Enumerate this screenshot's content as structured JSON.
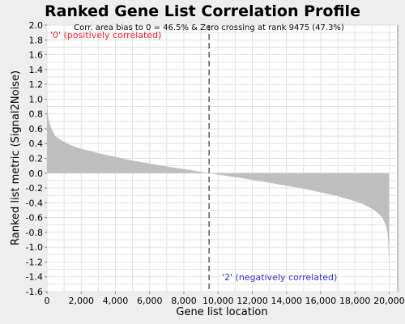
{
  "chart_data": {
    "type": "area",
    "title": "Ranked Gene List Correlation Profile",
    "xlabel": "Gene list location",
    "ylabel": "Ranked list metric (Signal2Noise)",
    "xlim": [
      0,
      20500
    ],
    "ylim": [
      -1.6,
      2.0
    ],
    "xticks": [
      0,
      2000,
      4000,
      6000,
      8000,
      10000,
      12000,
      14000,
      16000,
      18000,
      20000
    ],
    "xtick_labels": [
      "0",
      "2,000",
      "4,000",
      "6,000",
      "8,000",
      "10,000",
      "12,000",
      "14,000",
      "16,000",
      "18,000",
      "20,000"
    ],
    "yticks": [
      2.0,
      1.8,
      1.6,
      1.4,
      1.2,
      1.0,
      0.8,
      0.6,
      0.4,
      0.2,
      0.0,
      -0.2,
      -0.4,
      -0.6,
      -0.8,
      -1.0,
      -1.2,
      -1.4,
      -1.6
    ],
    "ytick_labels": [
      "2.0",
      "1.8",
      "1.6",
      "1.4",
      "1.2",
      "1.0",
      "0.8",
      "0.6",
      "0.4",
      "0.2",
      "0.0",
      "-0.2",
      "-0.4",
      "-0.6",
      "-0.8",
      "-1.0",
      "-1.2",
      "-1.4",
      "-1.6"
    ],
    "grid": true,
    "fill_color": "#bfbfbf",
    "zero_crossing_rank": 9475,
    "annotation": "Corr. area bias to 0 = 46.5% & Zero crossing at rank 9475 (47.3%)",
    "pos_label": "'0' (positively correlated)",
    "neg_label": "'2' (negatively correlated)",
    "pos_color": "#e8202a",
    "neg_color": "#3232c8",
    "x": [
      0,
      20,
      60,
      150,
      300,
      500,
      800,
      1200,
      1600,
      2000,
      2500,
      3000,
      4000,
      5000,
      6000,
      7000,
      8000,
      9000,
      9475,
      10000,
      11000,
      12000,
      13000,
      14000,
      15000,
      16000,
      17000,
      18000,
      18500,
      19000,
      19300,
      19600,
      19800,
      19900,
      19950,
      19980,
      20000
    ],
    "y": [
      1.02,
      0.9,
      0.78,
      0.67,
      0.58,
      0.5,
      0.45,
      0.4,
      0.36,
      0.33,
      0.3,
      0.27,
      0.22,
      0.17,
      0.13,
      0.09,
      0.055,
      0.02,
      0.0,
      -0.02,
      -0.055,
      -0.09,
      -0.13,
      -0.17,
      -0.21,
      -0.26,
      -0.31,
      -0.38,
      -0.42,
      -0.48,
      -0.53,
      -0.6,
      -0.7,
      -0.8,
      -0.95,
      -1.15,
      -1.42
    ]
  }
}
